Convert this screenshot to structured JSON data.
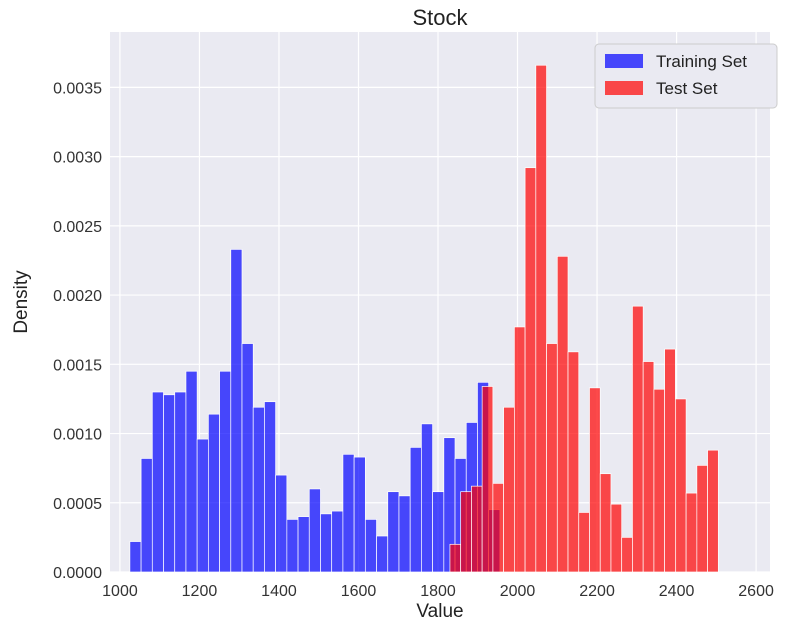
{
  "chart_data": {
    "type": "bar",
    "title": "Stock",
    "xlabel": "Value",
    "ylabel": "Density",
    "xlim": [
      975,
      2635
    ],
    "ylim": [
      0,
      0.0039
    ],
    "x_ticks": [
      1000,
      1200,
      1400,
      1600,
      1800,
      2000,
      2200,
      2400,
      2600
    ],
    "x_tick_labels": [
      "1000",
      "1200",
      "1400",
      "1600",
      "1800",
      "2000",
      "2200",
      "2400",
      "2600"
    ],
    "y_ticks": [
      0,
      0.0005,
      0.001,
      0.0015,
      0.002,
      0.0025,
      0.003,
      0.0035
    ],
    "y_tick_labels": [
      "0.0000",
      "0.0005",
      "0.0010",
      "0.0015",
      "0.0020",
      "0.0025",
      "0.0030",
      "0.0035"
    ],
    "grid": true,
    "legend": "top-right",
    "series": [
      {
        "name": "Training Set",
        "color": "#0000ff",
        "opacity": 0.7,
        "bin_start": 1025,
        "bin_width": 28.2,
        "values": [
          0.00022,
          0.00082,
          0.0013,
          0.00128,
          0.0013,
          0.00145,
          0.00096,
          0.00114,
          0.00145,
          0.00233,
          0.00165,
          0.00119,
          0.00123,
          0.0007,
          0.00038,
          0.0004,
          0.0006,
          0.00042,
          0.00044,
          0.00085,
          0.00083,
          0.00038,
          0.00026,
          0.00058,
          0.00055,
          0.0009,
          0.00107,
          0.00058,
          0.00097,
          0.00082,
          0.00108,
          0.00137,
          0.00045
        ]
      },
      {
        "name": "Test Set",
        "color": "#ff0000",
        "opacity": 0.7,
        "bin_start": 1830,
        "bin_width": 27.0,
        "values": [
          0.0002,
          0.00058,
          0.00062,
          0.00134,
          0.00064,
          0.00119,
          0.00177,
          0.00292,
          0.00366,
          0.00165,
          0.00228,
          0.00159,
          0.00043,
          0.00133,
          0.00071,
          0.00049,
          0.00025,
          0.00192,
          0.00152,
          0.00132,
          0.00161,
          0.00125,
          0.00057,
          0.00077,
          0.00088
        ]
      }
    ]
  }
}
